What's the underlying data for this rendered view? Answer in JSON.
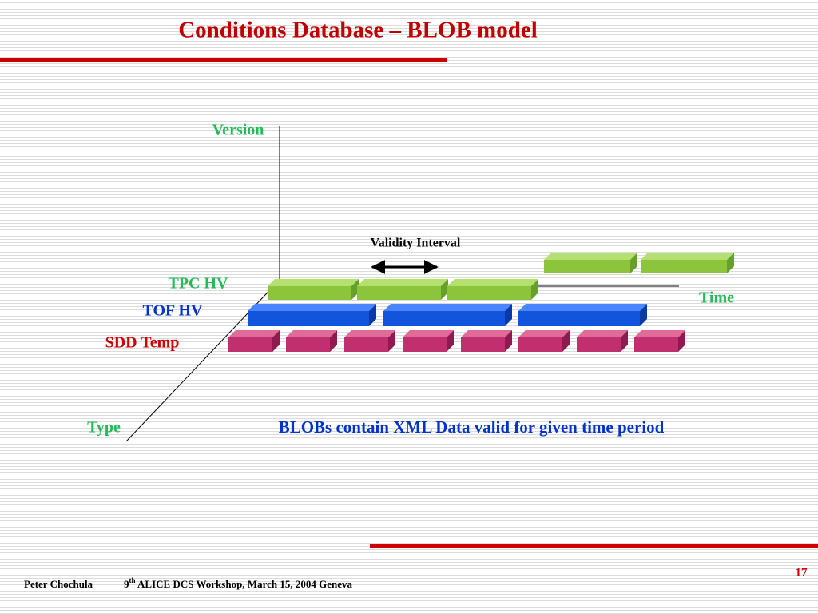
{
  "header": {
    "title": "Conditions Database – BLOB model"
  },
  "axes": {
    "version": "Version",
    "time": "Time",
    "type": "Type"
  },
  "rows": [
    "TPC HV",
    "TOF HV",
    "SDD Temp"
  ],
  "annotation": "Validity Interval",
  "caption": "BLOBs contain XML Data valid for given time period",
  "footer": {
    "author": "Peter Chochula",
    "event_number": "9",
    "event_suffix": "th",
    "event_rest": " ALICE DCS Workshop, March 15, 2004 Geneva",
    "page": "17"
  }
}
